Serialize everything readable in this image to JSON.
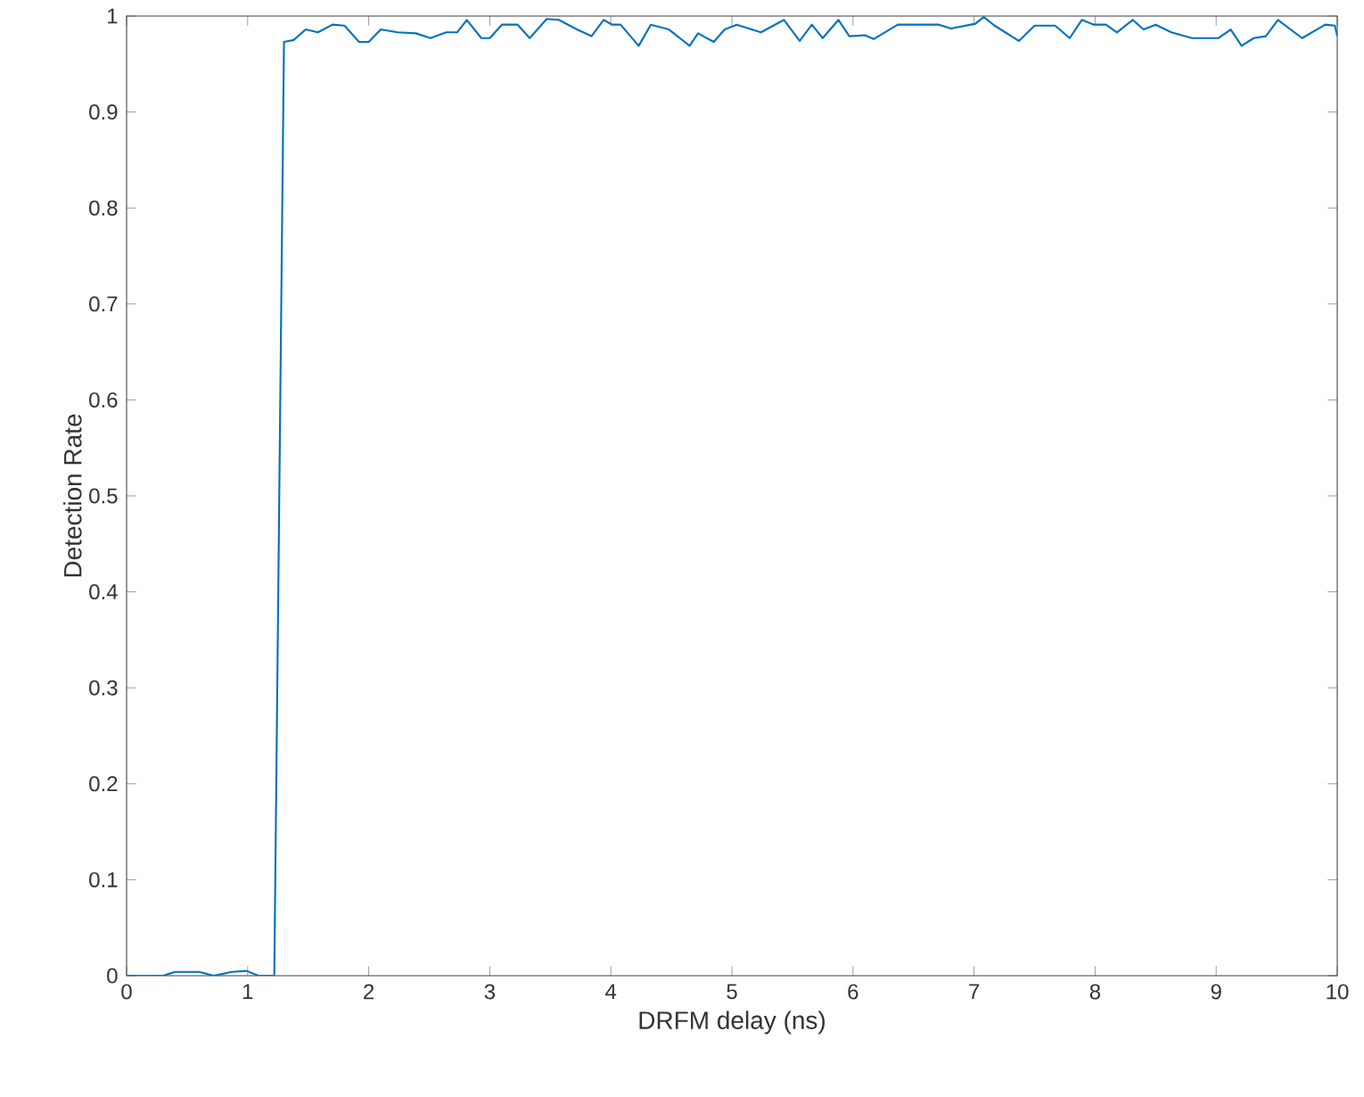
{
  "chart_data": {
    "type": "line",
    "xlabel": "DRFM delay (ns)",
    "ylabel": "Detection Rate",
    "xlim": [
      0,
      10
    ],
    "ylim": [
      0,
      1
    ],
    "xticks": [
      0,
      1,
      2,
      3,
      4,
      5,
      6,
      7,
      8,
      9,
      10
    ],
    "yticks": [
      0,
      0.1,
      0.2,
      0.3,
      0.4,
      0.5,
      0.6,
      0.7,
      0.8,
      0.9,
      1
    ],
    "marker": "none",
    "line_style": "solid",
    "series": [
      {
        "color": "#0072bd",
        "x": [
          0,
          0.3,
          0.4,
          0.6,
          0.72,
          0.87,
          0.99,
          1.09,
          1.22,
          1.3,
          1.38,
          1.48,
          1.58,
          1.7,
          1.8,
          1.92,
          2.0,
          2.1,
          2.24,
          2.39,
          2.51,
          2.64,
          2.73,
          2.81,
          2.93,
          3.0,
          3.1,
          3.23,
          3.33,
          3.47,
          3.57,
          3.72,
          3.84,
          3.94,
          4.01,
          4.08,
          4.23,
          4.33,
          4.48,
          4.65,
          4.72,
          4.85,
          4.94,
          5.04,
          5.24,
          5.43,
          5.56,
          5.66,
          5.75,
          5.88,
          5.97,
          6.1,
          6.17,
          6.37,
          6.71,
          6.81,
          7.01,
          7.08,
          7.17,
          7.37,
          7.5,
          7.67,
          7.79,
          7.89,
          7.99,
          8.09,
          8.18,
          8.31,
          8.4,
          8.5,
          8.63,
          8.8,
          9.02,
          9.12,
          9.21,
          9.31,
          9.41,
          9.51,
          9.71,
          9.9,
          9.98,
          10
        ],
        "values": [
          0,
          0,
          0.004,
          0.004,
          0,
          0.004,
          0.005,
          0,
          0,
          0.973,
          0.975,
          0.986,
          0.983,
          0.991,
          0.99,
          0.973,
          0.973,
          0.986,
          0.983,
          0.982,
          0.977,
          0.983,
          0.983,
          0.996,
          0.977,
          0.977,
          0.991,
          0.991,
          0.977,
          0.997,
          0.996,
          0.986,
          0.979,
          0.996,
          0.991,
          0.991,
          0.969,
          0.991,
          0.986,
          0.969,
          0.982,
          0.973,
          0.986,
          0.991,
          0.983,
          0.996,
          0.974,
          0.991,
          0.977,
          0.996,
          0.979,
          0.98,
          0.976,
          0.991,
          0.991,
          0.987,
          0.992,
          0.999,
          0.99,
          0.974,
          0.99,
          0.99,
          0.977,
          0.996,
          0.991,
          0.991,
          0.983,
          0.996,
          0.986,
          0.991,
          0.983,
          0.977,
          0.977,
          0.986,
          0.969,
          0.977,
          0.979,
          0.996,
          0.977,
          0.991,
          0.99,
          0.979
        ]
      }
    ]
  }
}
